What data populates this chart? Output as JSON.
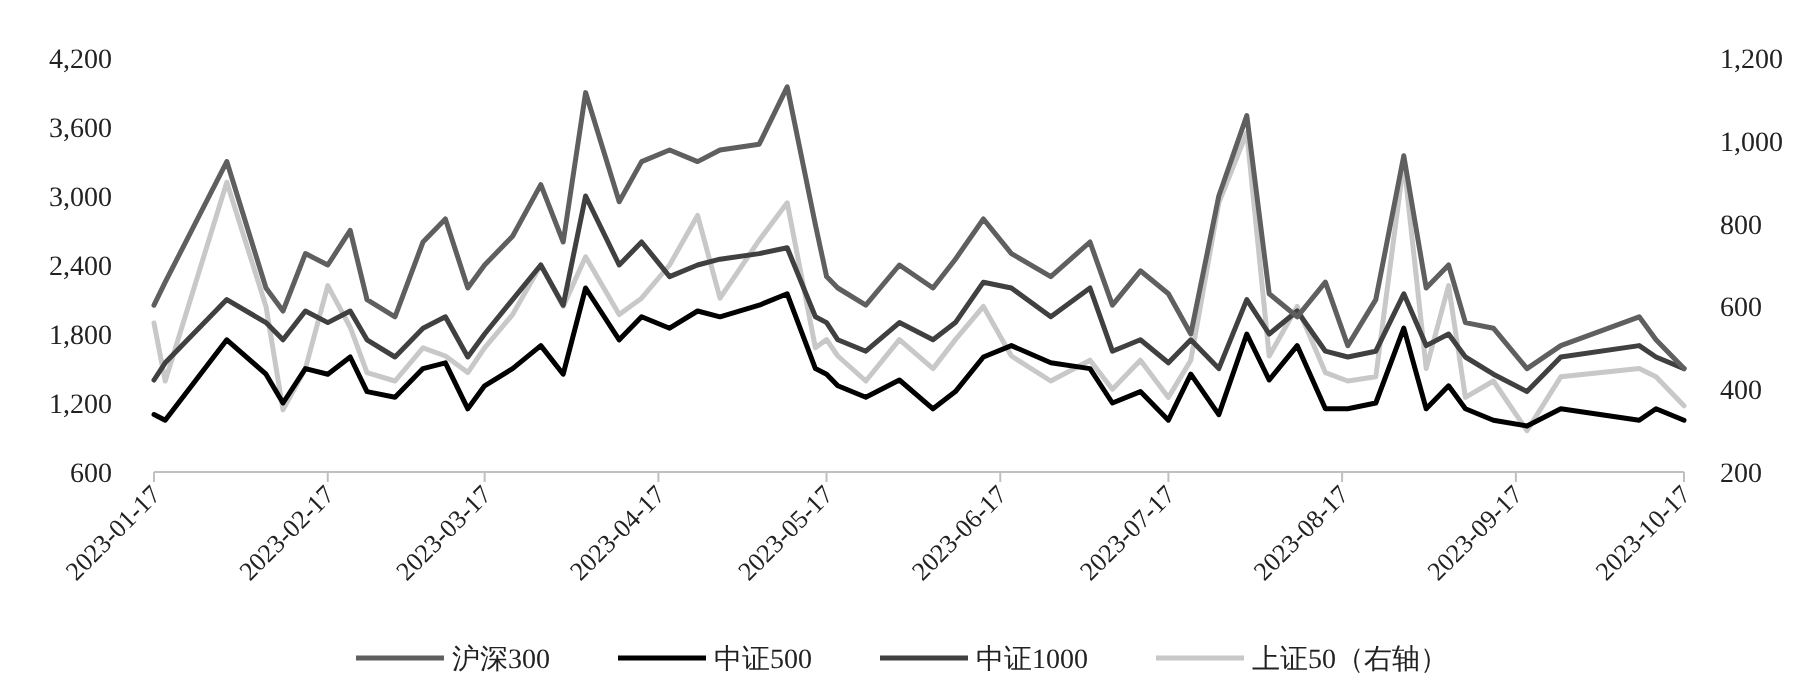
{
  "chart_data": {
    "type": "line",
    "x": [
      "2023-01-17",
      "2023-01-19",
      "2023-01-30",
      "2023-02-06",
      "2023-02-09",
      "2023-02-13",
      "2023-02-17",
      "2023-02-21",
      "2023-02-24",
      "2023-03-01",
      "2023-03-06",
      "2023-03-10",
      "2023-03-14",
      "2023-03-17",
      "2023-03-22",
      "2023-03-27",
      "2023-03-31",
      "2023-04-04",
      "2023-04-10",
      "2023-04-14",
      "2023-04-19",
      "2023-04-24",
      "2023-04-28",
      "2023-05-05",
      "2023-05-10",
      "2023-05-15",
      "2023-05-17",
      "2023-05-19",
      "2023-05-24",
      "2023-05-30",
      "2023-06-05",
      "2023-06-09",
      "2023-06-14",
      "2023-06-19",
      "2023-06-26",
      "2023-07-03",
      "2023-07-07",
      "2023-07-12",
      "2023-07-17",
      "2023-07-21",
      "2023-07-26",
      "2023-07-31",
      "2023-08-04",
      "2023-08-09",
      "2023-08-14",
      "2023-08-18",
      "2023-08-23",
      "2023-08-28",
      "2023-09-01",
      "2023-09-05",
      "2023-09-08",
      "2023-09-13",
      "2023-09-19",
      "2023-09-25",
      "2023-10-09",
      "2023-10-12",
      "2023-10-17"
    ],
    "series": [
      {
        "name": "沪深300",
        "color": "#5f5f5f",
        "values": [
          2050,
          2250,
          3300,
          2200,
          2000,
          2500,
          2400,
          2700,
          2100,
          1950,
          2600,
          2800,
          2200,
          2400,
          2650,
          3100,
          2600,
          3900,
          2950,
          3300,
          3400,
          3300,
          3400,
          3450,
          3950,
          2750,
          2300,
          2200,
          2050,
          2400,
          2200,
          2450,
          2800,
          2500,
          2300,
          2600,
          2050,
          2350,
          2150,
          1800,
          3000,
          3700,
          2150,
          1950,
          2250,
          1700,
          2100,
          3350,
          2200,
          2400,
          1900,
          1850,
          1500,
          1700,
          1950,
          1750,
          1500
        ]
      },
      {
        "name": "中证500",
        "color": "#000000",
        "values": [
          1100,
          1050,
          1750,
          1450,
          1200,
          1500,
          1450,
          1600,
          1300,
          1250,
          1500,
          1550,
          1150,
          1350,
          1500,
          1700,
          1450,
          2200,
          1750,
          1950,
          1850,
          2000,
          1950,
          2050,
          2150,
          1500,
          1450,
          1350,
          1250,
          1400,
          1150,
          1300,
          1600,
          1700,
          1550,
          1500,
          1200,
          1300,
          1050,
          1450,
          1100,
          1800,
          1400,
          1700,
          1150,
          1150,
          1200,
          1850,
          1150,
          1350,
          1150,
          1050,
          1000,
          1150,
          1050,
          1150,
          1050
        ]
      },
      {
        "name": "中证1000",
        "color": "#404040",
        "values": [
          1400,
          1550,
          2100,
          1900,
          1750,
          2000,
          1900,
          2000,
          1750,
          1600,
          1850,
          1950,
          1600,
          1800,
          2100,
          2400,
          2050,
          3000,
          2400,
          2600,
          2300,
          2400,
          2450,
          2500,
          2550,
          1950,
          1900,
          1750,
          1650,
          1900,
          1750,
          1900,
          2250,
          2200,
          1950,
          2200,
          1650,
          1750,
          1550,
          1750,
          1500,
          2100,
          1800,
          2000,
          1650,
          1600,
          1650,
          2150,
          1700,
          1800,
          1600,
          1450,
          1300,
          1600,
          1700,
          1600,
          1500
        ]
      },
      {
        "name": "上证50（右轴）",
        "color": "#c8c8c8",
        "axis": "y2",
        "values": [
          560,
          420,
          900,
          600,
          350,
          450,
          650,
          550,
          440,
          420,
          500,
          480,
          440,
          500,
          580,
          700,
          600,
          720,
          580,
          620,
          700,
          820,
          620,
          760,
          850,
          500,
          520,
          480,
          420,
          520,
          450,
          520,
          600,
          480,
          420,
          470,
          400,
          470,
          380,
          470,
          850,
          1020,
          480,
          600,
          440,
          420,
          430,
          950,
          450,
          650,
          380,
          420,
          300,
          430,
          450,
          430,
          360
        ]
      }
    ],
    "xlim": [
      "2023-01-17",
      "2023-10-17"
    ],
    "xticks": [
      "2023-01-17",
      "2023-02-17",
      "2023-03-17",
      "2023-04-17",
      "2023-05-17",
      "2023-06-17",
      "2023-07-17",
      "2023-08-17",
      "2023-09-17",
      "2023-10-17"
    ],
    "ylim": [
      600,
      4200
    ],
    "yticks": [
      600,
      {
        "value": 1200,
        "label": "1,200"
      },
      {
        "value": 1800,
        "label": "1,800"
      },
      {
        "value": 2400,
        "label": "2,400"
      },
      {
        "value": 3000,
        "label": "3,000"
      },
      {
        "value": 3600,
        "label": "3,600"
      },
      {
        "value": 4200,
        "label": "4,200"
      }
    ],
    "y2lim": [
      200,
      1200
    ],
    "y2ticks": [
      200,
      400,
      600,
      800,
      {
        "value": 1000,
        "label": "1,000"
      },
      {
        "value": 1200,
        "label": "1,200"
      }
    ],
    "legend": "bottom",
    "line_style": "solid"
  }
}
